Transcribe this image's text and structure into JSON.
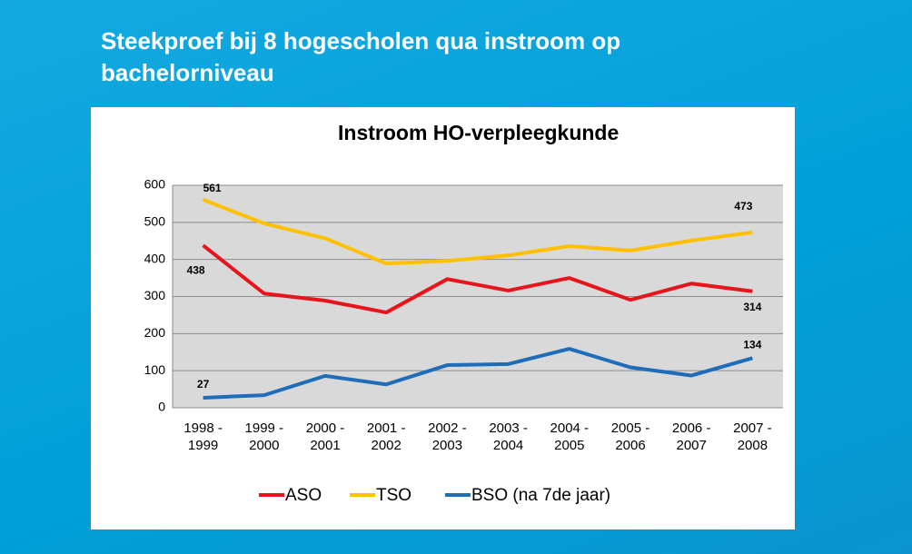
{
  "slide_title": "Steekproef bij 8 hogescholen qua instroom op bachelorniveau",
  "chart_data": {
    "type": "line",
    "title": "Instroom HO-verpleegkunde",
    "categories": [
      "1998 - 1999",
      "1999 - 2000",
      "2000 - 2001",
      "2001 - 2002",
      "2002 - 2003",
      "2003 - 2004",
      "2004 - 2005",
      "2005 - 2006",
      "2006 - 2007",
      "2007 - 2008"
    ],
    "series": [
      {
        "name": "ASO",
        "color": "#e8141b",
        "values": [
          438,
          308,
          289,
          257,
          347,
          316,
          350,
          291,
          335,
          314
        ]
      },
      {
        "name": "TSO",
        "color": "#ffc000",
        "values": [
          561,
          497,
          457,
          389,
          396,
          411,
          436,
          424,
          451,
          473
        ]
      },
      {
        "name": "BSO (na 7de jaar)",
        "color": "#1f6cb8",
        "values": [
          27,
          34,
          86,
          63,
          115,
          118,
          159,
          109,
          87,
          134
        ]
      }
    ],
    "ylim": [
      0,
      600
    ],
    "yticks": [
      0,
      100,
      200,
      300,
      400,
      500,
      600
    ],
    "grid": true,
    "legend": "bottom"
  }
}
